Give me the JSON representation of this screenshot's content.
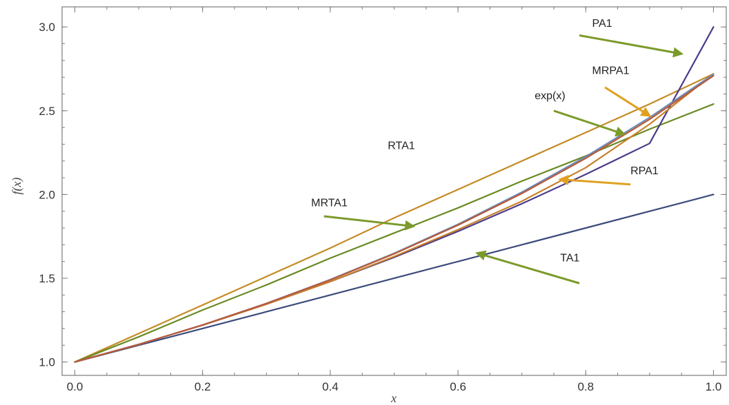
{
  "chart_data": {
    "type": "line",
    "xlabel": "x",
    "ylabel": "f(x)",
    "xlim": [
      -0.02,
      1.02
    ],
    "ylim": [
      0.92,
      3.12
    ],
    "grid": false,
    "x_ticks": [
      {
        "value": 0.0,
        "label": "0.0"
      },
      {
        "value": 0.2,
        "label": "0.2"
      },
      {
        "value": 0.4,
        "label": "0.4"
      },
      {
        "value": 0.6,
        "label": "0.6"
      },
      {
        "value": 0.8,
        "label": "0.8"
      },
      {
        "value": 1.0,
        "label": "1.0"
      }
    ],
    "y_ticks": [
      {
        "value": 1.0,
        "label": "1.0"
      },
      {
        "value": 1.5,
        "label": "1.5"
      },
      {
        "value": 2.0,
        "label": "2.0"
      },
      {
        "value": 2.5,
        "label": "2.5"
      },
      {
        "value": 3.0,
        "label": "3.0"
      }
    ],
    "x": [
      0.0,
      0.1,
      0.2,
      0.3,
      0.4,
      0.5,
      0.6,
      0.7,
      0.8,
      0.9,
      1.0
    ],
    "series": [
      {
        "name": "TA1",
        "color": "#3b4a7a",
        "values": [
          1.0,
          1.1,
          1.2,
          1.3,
          1.4,
          1.5,
          1.6,
          1.7,
          1.8,
          1.9,
          2.0
        ]
      },
      {
        "name": "RTA1",
        "color": "#c48a22",
        "values": [
          1.0,
          1.17,
          1.34,
          1.51,
          1.68,
          1.86,
          2.03,
          2.2,
          2.37,
          2.54,
          2.72
        ]
      },
      {
        "name": "MRTA1",
        "color": "#6a8a22",
        "values": [
          1.0,
          1.15,
          1.31,
          1.46,
          1.62,
          1.77,
          1.92,
          2.08,
          2.23,
          2.39,
          2.54
        ]
      },
      {
        "name": "PA1",
        "color": "#4a3a8a",
        "values": [
          1.0,
          1.105,
          1.22,
          1.345,
          1.48,
          1.625,
          1.78,
          1.945,
          2.12,
          2.305,
          3.0
        ]
      },
      {
        "name": "MRPA1",
        "color": "#c8802a",
        "values": [
          1.0,
          1.105,
          1.22,
          1.345,
          1.48,
          1.63,
          1.79,
          1.96,
          2.16,
          2.42,
          2.72
        ]
      },
      {
        "name": "exp(x)",
        "color": "#6c8cb8",
        "values": [
          1.0,
          1.105,
          1.221,
          1.35,
          1.492,
          1.649,
          1.822,
          2.014,
          2.226,
          2.46,
          2.718
        ]
      },
      {
        "name": "RPA1",
        "color": "#b85a3a",
        "values": [
          1.0,
          1.105,
          1.221,
          1.349,
          1.49,
          1.646,
          1.817,
          2.006,
          2.216,
          2.449,
          2.709
        ]
      }
    ],
    "annotations": [
      {
        "text": "PA1",
        "x": 0.81,
        "y": 3.0,
        "arrow_from": [
          0.79,
          2.95
        ],
        "arrow_to": [
          0.95,
          2.84
        ],
        "arrow_color": "#7c9a2a"
      },
      {
        "text": "MRPA1",
        "x": 0.81,
        "y": 2.72,
        "arrow_from": [
          0.83,
          2.64
        ],
        "arrow_to": [
          0.9,
          2.47
        ],
        "arrow_color": "#e0a020"
      },
      {
        "text": "exp(x)",
        "x": 0.72,
        "y": 2.57,
        "arrow_from": [
          0.75,
          2.5
        ],
        "arrow_to": [
          0.86,
          2.36
        ],
        "arrow_color": "#7c9a2a"
      },
      {
        "text": "RTA1",
        "x": 0.49,
        "y": 2.27,
        "arrow_from": null,
        "arrow_to": null,
        "arrow_color": null
      },
      {
        "text": "RPA1",
        "x": 0.87,
        "y": 2.12,
        "arrow_from": [
          0.87,
          2.06
        ],
        "arrow_to": [
          0.76,
          2.09
        ],
        "arrow_color": "#e0a020"
      },
      {
        "text": "MRTA1",
        "x": 0.37,
        "y": 1.93,
        "arrow_from": [
          0.39,
          1.87
        ],
        "arrow_to": [
          0.53,
          1.81
        ],
        "arrow_color": "#7c9a2a"
      },
      {
        "text": "TA1",
        "x": 0.76,
        "y": 1.6,
        "arrow_from": [
          0.79,
          1.47
        ],
        "arrow_to": [
          0.63,
          1.65
        ],
        "arrow_color": "#7c9a2a"
      }
    ]
  }
}
